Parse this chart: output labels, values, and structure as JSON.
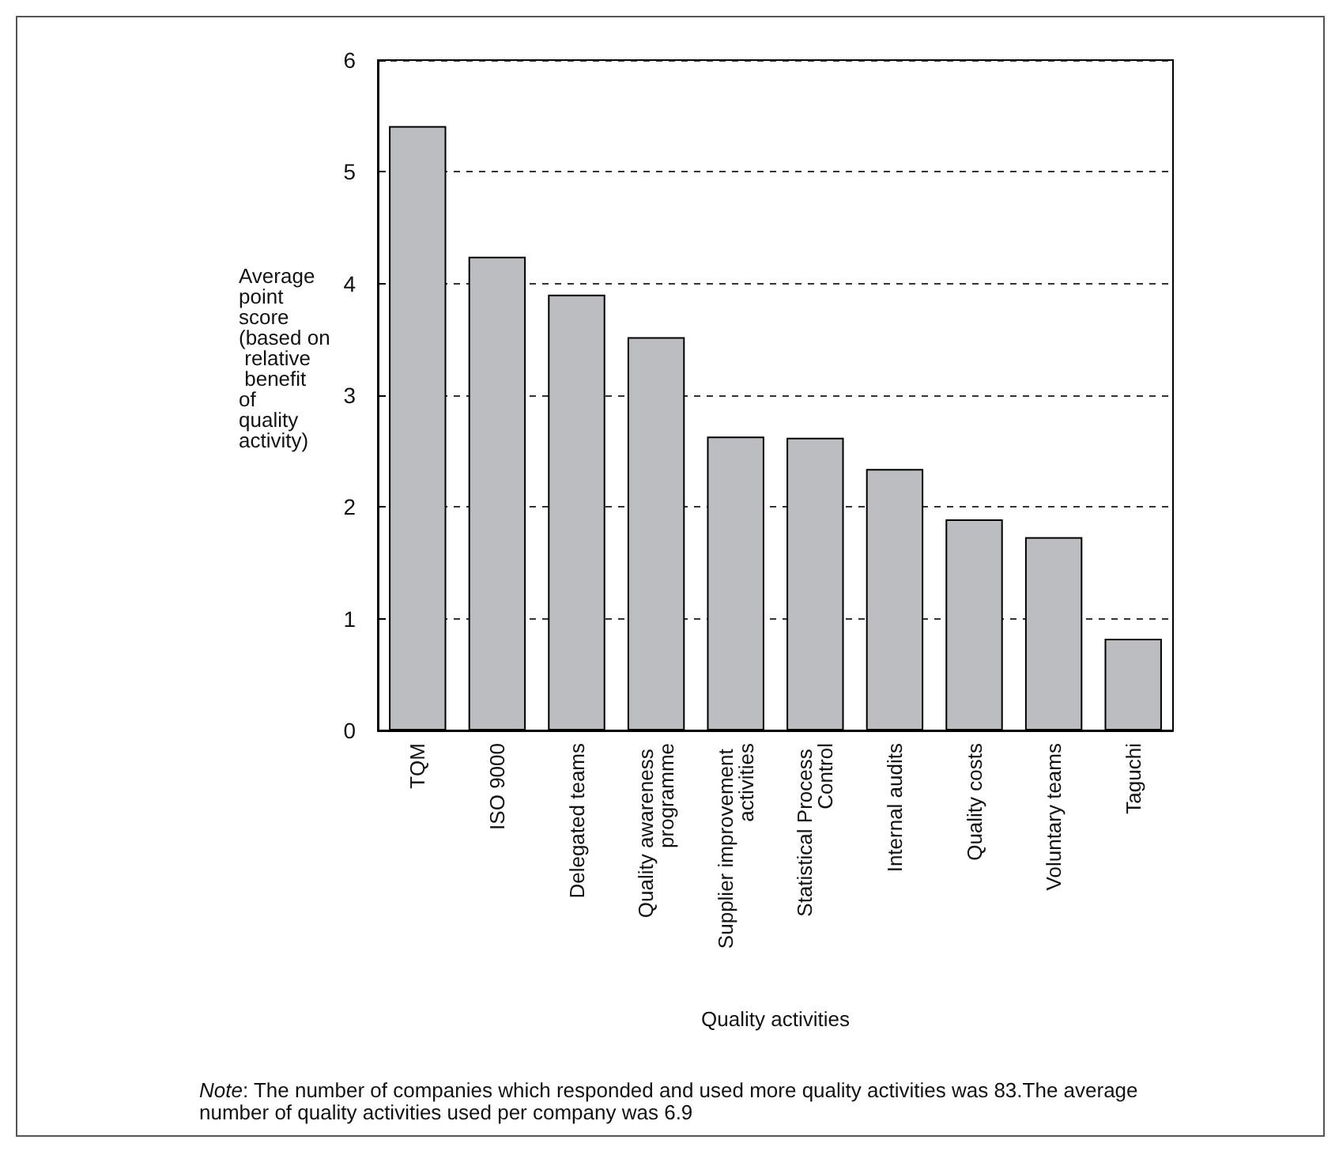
{
  "chart_data": {
    "type": "bar",
    "xlabel": "Quality activities",
    "ylabel": "Average point score (based on relative benefit of quality activity)",
    "categories": [
      "TQM",
      "ISO 9000",
      "Delegated teams",
      "Quality awareness programme",
      "Supplier improvement activities",
      "Statistical Process Control",
      "Internal audits",
      "Quality costs",
      "Voluntary teams",
      "Taguchi"
    ],
    "values": [
      5.41,
      4.24,
      3.9,
      3.52,
      2.63,
      2.62,
      2.34,
      1.89,
      1.73,
      0.82
    ],
    "color": "#bcbdc1",
    "ylim": [
      0,
      6
    ],
    "yticks": [
      0,
      1,
      2,
      3,
      4,
      5,
      6
    ],
    "grid": "y",
    "annotations": [
      "Note: The number of companies which responded and used more quality activities was 83.The average number of quality activities used per company was 6.9"
    ]
  }
}
